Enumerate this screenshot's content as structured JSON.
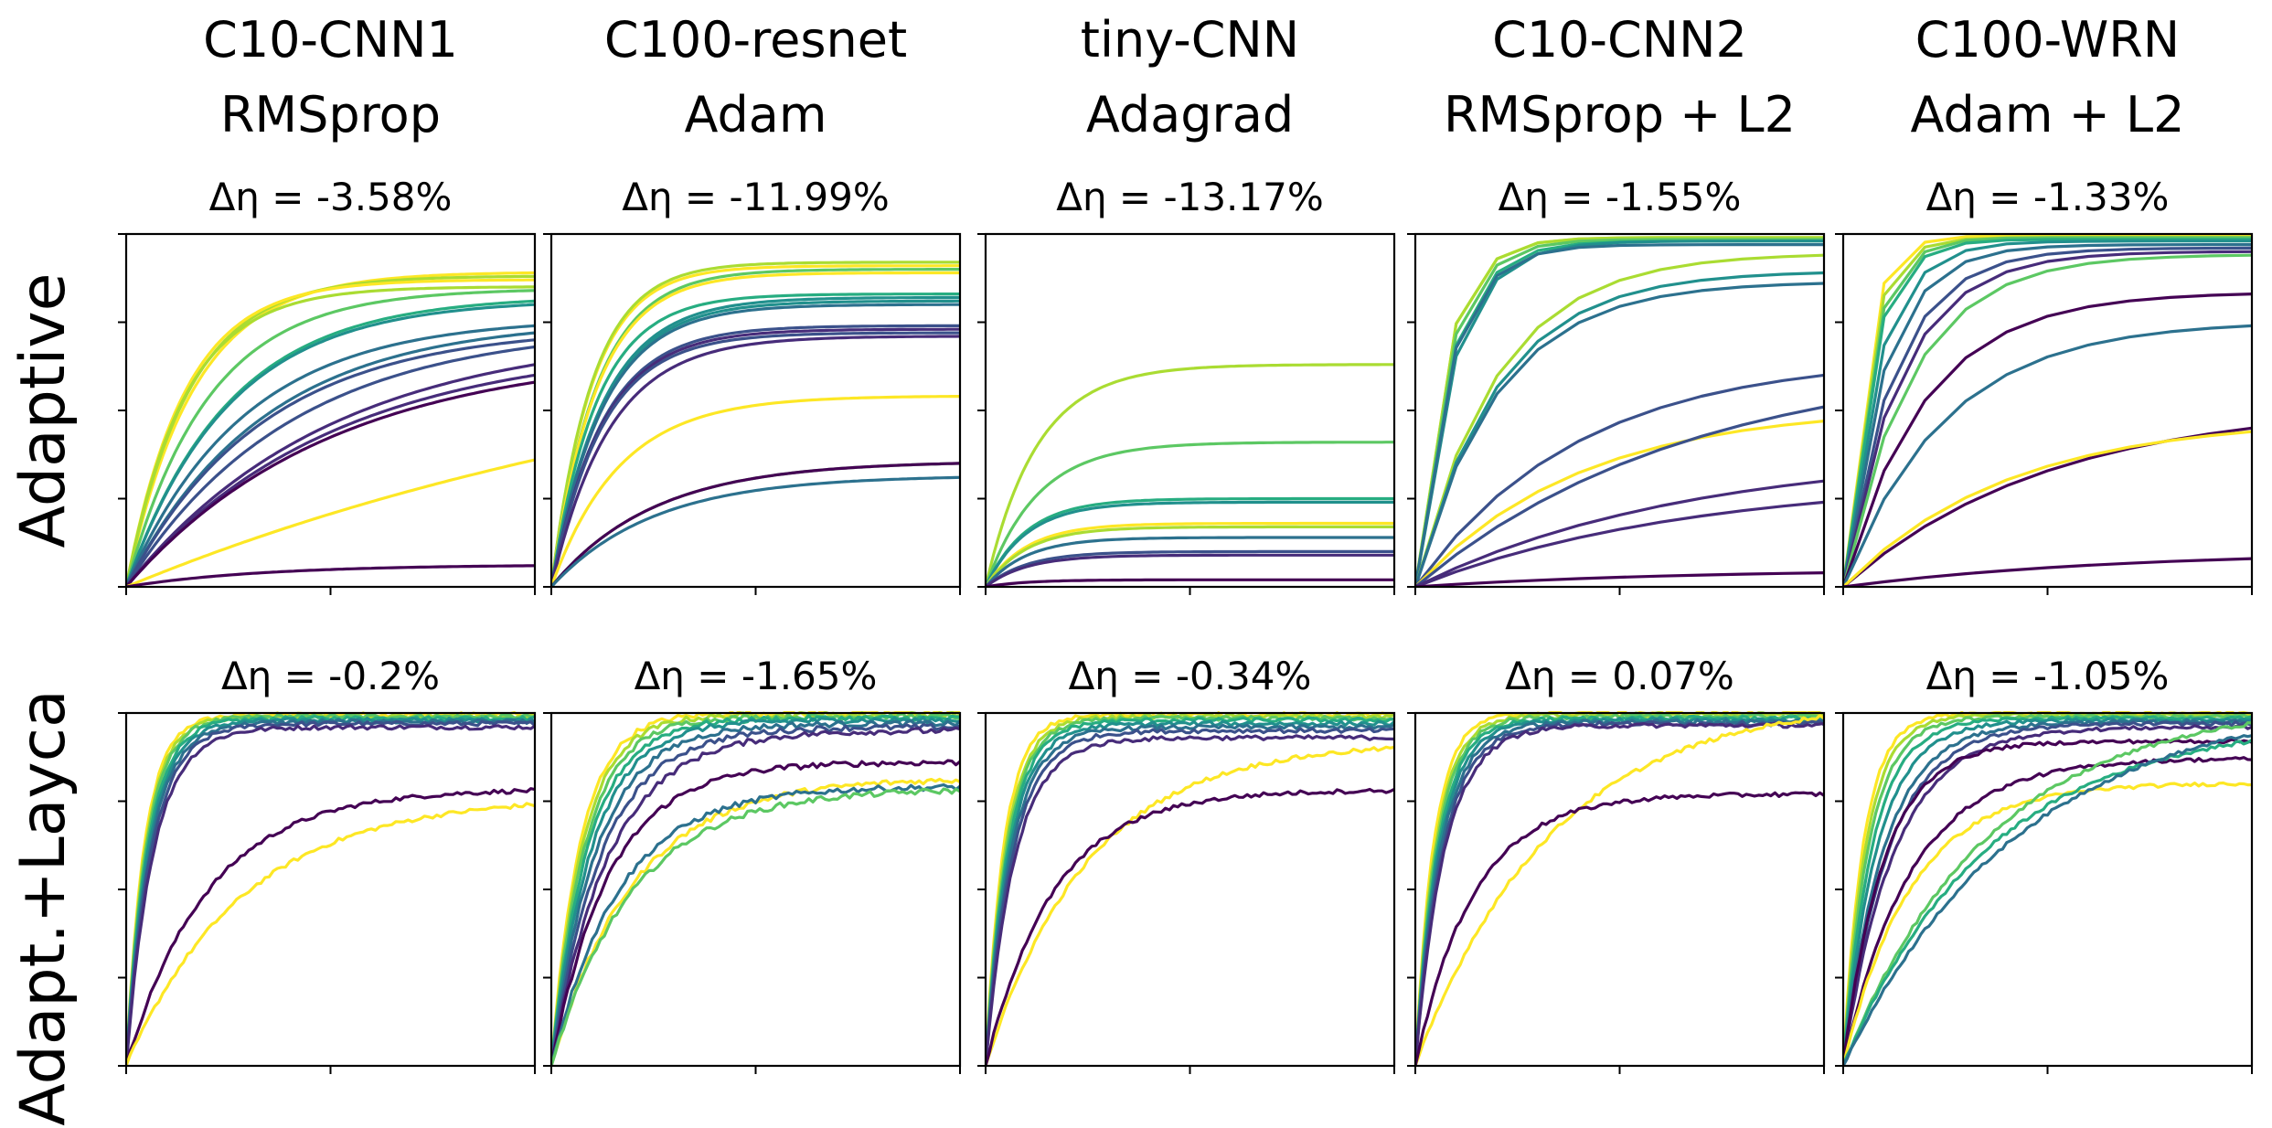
{
  "figure": {
    "row_labels": [
      "Adaptive",
      "Adapt.+Layca"
    ],
    "columns": [
      {
        "model": "C10-CNN1",
        "optimizer": "RMSprop"
      },
      {
        "model": "C100-resnet",
        "optimizer": "Adam"
      },
      {
        "model": "tiny-CNN",
        "optimizer": "Adagrad"
      },
      {
        "model": "C10-CNN2",
        "optimizer": "RMSprop + L2"
      },
      {
        "model": "C100-WRN",
        "optimizer": "Adam + L2"
      }
    ],
    "delta_labels": [
      [
        "Δη = -3.58%",
        "Δη = -11.99%",
        "Δη = -13.17%",
        "Δη = -1.55%",
        "Δη = -1.33%"
      ],
      [
        "Δη = -0.2%",
        "Δη = -1.65%",
        "Δη = -0.34%",
        "Δη = 0.07%",
        "Δη = -1.05%"
      ]
    ]
  },
  "colors": {
    "viridis": [
      "#440154",
      "#472c7a",
      "#3b518b",
      "#2c718e",
      "#21908d",
      "#27ad81",
      "#5cc863",
      "#aadc32",
      "#fde725"
    ],
    "axis": "#000000"
  },
  "chart_data": [
    {
      "type": "line",
      "row": 0,
      "col": 0,
      "xlim": [
        0,
        1
      ],
      "ylim": [
        0,
        1
      ],
      "tick_labels": false,
      "noise": 0,
      "n_x": 100,
      "series": [
        {
          "final": 0.89,
          "rate": 6,
          "color": 8
        },
        {
          "final": 0.88,
          "rate": 6.5,
          "color": 7
        },
        {
          "final": 0.87,
          "rate": 7,
          "color": 8
        },
        {
          "final": 0.85,
          "rate": 7,
          "color": 7
        },
        {
          "final": 0.84,
          "rate": 5,
          "color": 6
        },
        {
          "final": 0.81,
          "rate": 4,
          "color": 5
        },
        {
          "final": 0.8,
          "rate": 4,
          "color": 4
        },
        {
          "final": 0.74,
          "rate": 3.5,
          "color": 3
        },
        {
          "final": 0.72,
          "rate": 3,
          "color": 3
        },
        {
          "final": 0.7,
          "rate": 3,
          "color": 2
        },
        {
          "final": 0.68,
          "rate": 2.5,
          "color": 2
        },
        {
          "final": 0.63,
          "rate": 2,
          "color": 1
        },
        {
          "final": 0.6,
          "rate": 2,
          "color": 1
        },
        {
          "final": 0.58,
          "rate": 2,
          "color": 0
        },
        {
          "final": 0.36,
          "rate": 0.6,
          "color": 8
        },
        {
          "final": 0.06,
          "rate": 3,
          "color": 0
        }
      ]
    },
    {
      "type": "line",
      "row": 0,
      "col": 1,
      "xlim": [
        0,
        1
      ],
      "ylim": [
        0,
        1
      ],
      "tick_labels": false,
      "noise": 0,
      "n_x": 100,
      "series": [
        {
          "final": 0.91,
          "rate": 10,
          "color": 8
        },
        {
          "final": 0.92,
          "rate": 10,
          "color": 7
        },
        {
          "final": 0.9,
          "rate": 9,
          "color": 6
        },
        {
          "final": 0.89,
          "rate": 9,
          "color": 8
        },
        {
          "final": 0.83,
          "rate": 9,
          "color": 5
        },
        {
          "final": 0.82,
          "rate": 8,
          "color": 4
        },
        {
          "final": 0.81,
          "rate": 8,
          "color": 4
        },
        {
          "final": 0.8,
          "rate": 8,
          "color": 3
        },
        {
          "final": 0.74,
          "rate": 8,
          "color": 2
        },
        {
          "final": 0.73,
          "rate": 8,
          "color": 1
        },
        {
          "final": 0.72,
          "rate": 8,
          "color": 2
        },
        {
          "final": 0.71,
          "rate": 7,
          "color": 1
        },
        {
          "final": 0.54,
          "rate": 6,
          "color": 8
        },
        {
          "final": 0.35,
          "rate": 4,
          "color": 6
        },
        {
          "final": 0.35,
          "rate": 4,
          "color": 0
        },
        {
          "final": 0.31,
          "rate": 4,
          "color": 3
        }
      ]
    },
    {
      "type": "line",
      "row": 0,
      "col": 2,
      "xlim": [
        0,
        1
      ],
      "ylim": [
        0,
        1
      ],
      "tick_labels": false,
      "noise": 0,
      "n_x": 100,
      "series": [
        {
          "final": 0.63,
          "rate": 8,
          "color": 7
        },
        {
          "final": 0.41,
          "rate": 8,
          "color": 6
        },
        {
          "final": 0.25,
          "rate": 10,
          "color": 5
        },
        {
          "final": 0.24,
          "rate": 10,
          "color": 4
        },
        {
          "final": 0.18,
          "rate": 10,
          "color": 8
        },
        {
          "final": 0.17,
          "rate": 10,
          "color": 7
        },
        {
          "final": 0.14,
          "rate": 10,
          "color": 3
        },
        {
          "final": 0.1,
          "rate": 10,
          "color": 2
        },
        {
          "final": 0.09,
          "rate": 10,
          "color": 1
        },
        {
          "final": 0.02,
          "rate": 10,
          "color": 0
        }
      ]
    },
    {
      "type": "line",
      "row": 0,
      "col": 3,
      "xlim": [
        0,
        1
      ],
      "ylim": [
        0,
        1
      ],
      "tick_labels": false,
      "noise": 0,
      "n_x": 10,
      "series": [
        {
          "final": 0.99,
          "rate": 14,
          "color": 8
        },
        {
          "final": 0.99,
          "rate": 14,
          "color": 7
        },
        {
          "final": 0.985,
          "rate": 13,
          "color": 6
        },
        {
          "final": 0.98,
          "rate": 12,
          "color": 5
        },
        {
          "final": 0.98,
          "rate": 11,
          "color": 4
        },
        {
          "final": 0.97,
          "rate": 12,
          "color": 3
        },
        {
          "final": 0.94,
          "rate": 5,
          "color": 7
        },
        {
          "final": 0.89,
          "rate": 5,
          "color": 4
        },
        {
          "final": 0.86,
          "rate": 5,
          "color": 3
        },
        {
          "final": 0.6,
          "rate": 2.5,
          "color": 2
        },
        {
          "final": 0.47,
          "rate": 2.5,
          "color": 8
        },
        {
          "final": 0.51,
          "rate": 1.5,
          "color": 2
        },
        {
          "final": 0.3,
          "rate": 1.5,
          "color": 1
        },
        {
          "final": 0.24,
          "rate": 1.5,
          "color": 1
        },
        {
          "final": 0.04,
          "rate": 1.5,
          "color": 0
        }
      ]
    },
    {
      "type": "line",
      "row": 0,
      "col": 4,
      "xlim": [
        0,
        1
      ],
      "ylim": [
        0,
        1
      ],
      "tick_labels": false,
      "noise": 0,
      "n_x": 10,
      "series": [
        {
          "final": 0.995,
          "rate": 20,
          "color": 8
        },
        {
          "final": 0.99,
          "rate": 18,
          "color": 7
        },
        {
          "final": 0.99,
          "rate": 16,
          "color": 6
        },
        {
          "final": 0.985,
          "rate": 15,
          "color": 5
        },
        {
          "final": 0.98,
          "rate": 12,
          "color": 4
        },
        {
          "final": 0.97,
          "rate": 10,
          "color": 3
        },
        {
          "final": 0.96,
          "rate": 8,
          "color": 2
        },
        {
          "final": 0.95,
          "rate": 7,
          "color": 1
        },
        {
          "final": 0.94,
          "rate": 6,
          "color": 6
        },
        {
          "final": 0.83,
          "rate": 5,
          "color": 0
        },
        {
          "final": 0.74,
          "rate": 4,
          "color": 3
        },
        {
          "final": 0.45,
          "rate": 2,
          "color": 0
        },
        {
          "final": 0.44,
          "rate": 2.5,
          "color": 8
        },
        {
          "final": 0.08,
          "rate": 1.5,
          "color": 0
        }
      ]
    },
    {
      "type": "line",
      "row": 1,
      "col": 0,
      "xlim": [
        0,
        1
      ],
      "ylim": [
        0,
        1
      ],
      "tick_labels": false,
      "noise": 0.006,
      "n_x": 100,
      "series": [
        {
          "final": 0.995,
          "rate": 22,
          "color": 8
        },
        {
          "final": 0.99,
          "rate": 21,
          "color": 7
        },
        {
          "final": 0.99,
          "rate": 20,
          "color": 6
        },
        {
          "final": 0.985,
          "rate": 19,
          "color": 5
        },
        {
          "final": 0.98,
          "rate": 18,
          "color": 4
        },
        {
          "final": 0.975,
          "rate": 17,
          "color": 3
        },
        {
          "final": 0.97,
          "rate": 16,
          "color": 2
        },
        {
          "final": 0.96,
          "rate": 15,
          "color": 1
        },
        {
          "final": 0.78,
          "rate": 5,
          "color": 0
        },
        {
          "final": 0.74,
          "rate": 3.5,
          "color": 8
        }
      ]
    },
    {
      "type": "line",
      "row": 1,
      "col": 1,
      "xlim": [
        0,
        1
      ],
      "ylim": [
        0,
        1
      ],
      "tick_labels": false,
      "noise": 0.008,
      "n_x": 100,
      "series": [
        {
          "final": 1.0,
          "rate": 14,
          "color": 8
        },
        {
          "final": 0.995,
          "rate": 13,
          "color": 7
        },
        {
          "final": 0.99,
          "rate": 12,
          "color": 6
        },
        {
          "final": 0.985,
          "rate": 11,
          "color": 5
        },
        {
          "final": 0.98,
          "rate": 10,
          "color": 4
        },
        {
          "final": 0.97,
          "rate": 9,
          "color": 3
        },
        {
          "final": 0.96,
          "rate": 8,
          "color": 2
        },
        {
          "final": 0.95,
          "rate": 7,
          "color": 1
        },
        {
          "final": 0.86,
          "rate": 7,
          "color": 0
        },
        {
          "final": 0.81,
          "rate": 5,
          "color": 8
        },
        {
          "final": 0.79,
          "rate": 6,
          "color": 3
        },
        {
          "final": 0.78,
          "rate": 5,
          "color": 6
        }
      ]
    },
    {
      "type": "line",
      "row": 1,
      "col": 2,
      "xlim": [
        0,
        1
      ],
      "ylim": [
        0,
        1
      ],
      "tick_labels": false,
      "noise": 0.006,
      "n_x": 100,
      "series": [
        {
          "final": 0.995,
          "rate": 22,
          "color": 8
        },
        {
          "final": 0.99,
          "rate": 20,
          "color": 7
        },
        {
          "final": 0.985,
          "rate": 19,
          "color": 6
        },
        {
          "final": 0.98,
          "rate": 18,
          "color": 5
        },
        {
          "final": 0.97,
          "rate": 17,
          "color": 4
        },
        {
          "final": 0.96,
          "rate": 16,
          "color": 3
        },
        {
          "final": 0.95,
          "rate": 15,
          "color": 2
        },
        {
          "final": 0.93,
          "rate": 14,
          "color": 1
        },
        {
          "final": 0.9,
          "rate": 4,
          "color": 8
        },
        {
          "final": 0.78,
          "rate": 6,
          "color": 0
        }
      ]
    },
    {
      "type": "line",
      "row": 1,
      "col": 3,
      "xlim": [
        0,
        1
      ],
      "ylim": [
        0,
        1
      ],
      "tick_labels": false,
      "noise": 0.006,
      "n_x": 100,
      "series": [
        {
          "final": 1.0,
          "rate": 22,
          "color": 8
        },
        {
          "final": 0.995,
          "rate": 20,
          "color": 7
        },
        {
          "final": 0.99,
          "rate": 19,
          "color": 6
        },
        {
          "final": 0.985,
          "rate": 18,
          "color": 5
        },
        {
          "final": 0.98,
          "rate": 17,
          "color": 4
        },
        {
          "final": 0.975,
          "rate": 16,
          "color": 3
        },
        {
          "final": 0.97,
          "rate": 15,
          "color": 2
        },
        {
          "final": 0.965,
          "rate": 14,
          "color": 1
        },
        {
          "final": 0.99,
          "rate": 3,
          "color": 8
        },
        {
          "final": 0.77,
          "rate": 7,
          "color": 0
        }
      ]
    },
    {
      "type": "line",
      "row": 1,
      "col": 4,
      "xlim": [
        0,
        1
      ],
      "ylim": [
        0,
        1
      ],
      "tick_labels": false,
      "noise": 0.005,
      "n_x": 100,
      "series": [
        {
          "final": 1.0,
          "rate": 20,
          "color": 8
        },
        {
          "final": 0.995,
          "rate": 18,
          "color": 7
        },
        {
          "final": 0.99,
          "rate": 16,
          "color": 6
        },
        {
          "final": 0.985,
          "rate": 14,
          "color": 5
        },
        {
          "final": 0.98,
          "rate": 12,
          "color": 4
        },
        {
          "final": 0.975,
          "rate": 10,
          "color": 3
        },
        {
          "final": 0.97,
          "rate": 9,
          "color": 2
        },
        {
          "final": 0.96,
          "rate": 8,
          "color": 1
        },
        {
          "final": 0.92,
          "rate": 10,
          "color": 0
        },
        {
          "final": 0.87,
          "rate": 6,
          "color": 0
        },
        {
          "final": 0.8,
          "rate": 6,
          "color": 8
        },
        {
          "final": 0.97,
          "rate": 2.8,
          "color": 6
        },
        {
          "final": 0.92,
          "rate": 2.8,
          "color": 5
        },
        {
          "final": 0.94,
          "rate": 2.3,
          "color": 3
        }
      ]
    }
  ]
}
